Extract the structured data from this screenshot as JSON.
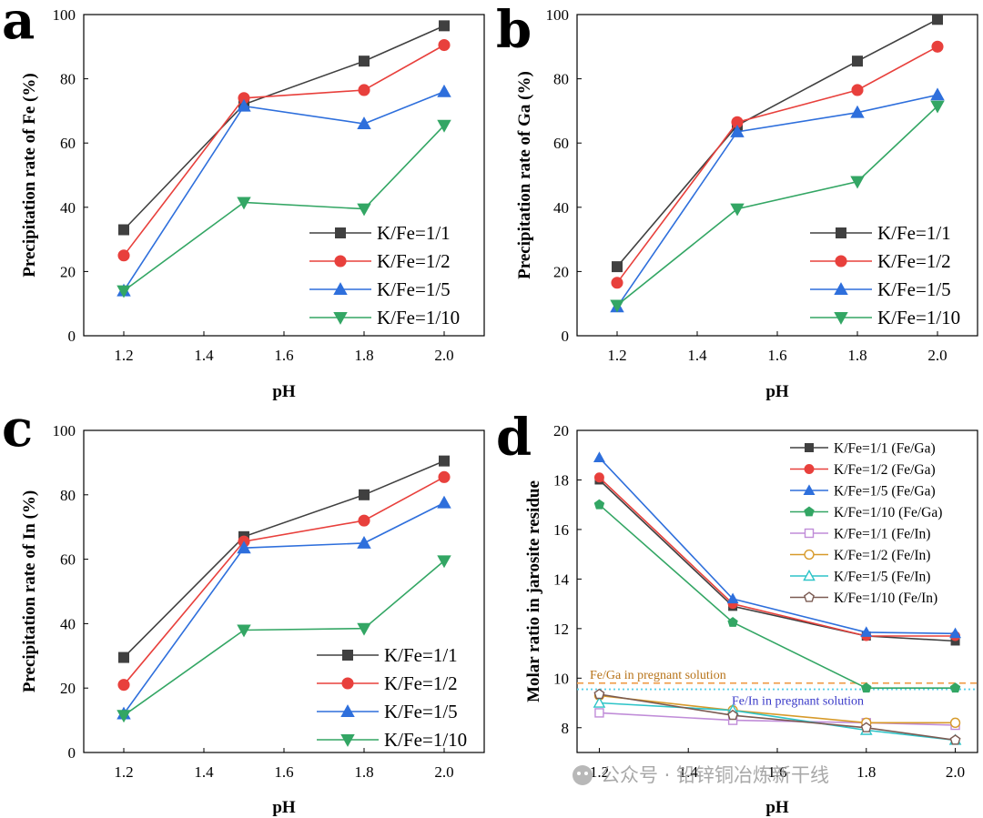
{
  "colors": {
    "s1": "#404040",
    "s2": "#e8403c",
    "s3": "#2e6fdc",
    "s4": "#33a664",
    "s5": "#c08cd8",
    "s6": "#d79a2a",
    "s7": "#2ec4c8",
    "s8": "#7a5a52",
    "feGaLine": "#f0a050",
    "feInLine": "#5ad0e8",
    "feGaText": "#b8741a",
    "feInText": "#3a3ac8"
  },
  "watermark": "公众号 · 铅锌铜冶炼新干线",
  "chart_data": [
    {
      "panel": "a",
      "type": "line",
      "xlabel": "pH",
      "ylabel": "Precipitation rate of Fe (%)",
      "x": [
        1.2,
        1.5,
        1.8,
        2.0
      ],
      "xlim": [
        1.1,
        2.1
      ],
      "ylim": [
        0,
        100
      ],
      "xticks": [
        "1.2",
        "1.4",
        "1.6",
        "1.8",
        "2.0"
      ],
      "yticks": [
        "0",
        "20",
        "40",
        "60",
        "80",
        "100"
      ],
      "legend_position": "bottom-right",
      "series": [
        {
          "name": "K/Fe=1/1",
          "marker": "square",
          "color": "#404040",
          "values": [
            33,
            72,
            85.5,
            96.5
          ]
        },
        {
          "name": "K/Fe=1/2",
          "marker": "circle",
          "color": "#e8403c",
          "values": [
            25,
            74,
            76.5,
            90.5
          ]
        },
        {
          "name": "K/Fe=1/5",
          "marker": "triangle-up",
          "color": "#2e6fdc",
          "values": [
            14,
            71.5,
            66,
            76
          ]
        },
        {
          "name": "K/Fe=1/10",
          "marker": "triangle-down",
          "color": "#33a664",
          "values": [
            14,
            41.5,
            39.5,
            65.5
          ]
        }
      ]
    },
    {
      "panel": "b",
      "type": "line",
      "xlabel": "pH",
      "ylabel": "Precipitation rate of Ga (%)",
      "x": [
        1.2,
        1.5,
        1.8,
        2.0
      ],
      "xlim": [
        1.1,
        2.1
      ],
      "ylim": [
        0,
        100
      ],
      "xticks": [
        "1.2",
        "1.4",
        "1.6",
        "1.8",
        "2.0"
      ],
      "yticks": [
        "0",
        "20",
        "40",
        "60",
        "80",
        "100"
      ],
      "legend_position": "bottom-right",
      "series": [
        {
          "name": "K/Fe=1/1",
          "marker": "square",
          "color": "#404040",
          "values": [
            21.5,
            65.5,
            85.5,
            98.5
          ]
        },
        {
          "name": "K/Fe=1/2",
          "marker": "circle",
          "color": "#e8403c",
          "values": [
            16.5,
            66.5,
            76.5,
            90
          ]
        },
        {
          "name": "K/Fe=1/5",
          "marker": "triangle-up",
          "color": "#2e6fdc",
          "values": [
            9,
            63.5,
            69.5,
            75
          ]
        },
        {
          "name": "K/Fe=1/10",
          "marker": "triangle-down",
          "color": "#33a664",
          "values": [
            9.5,
            39.5,
            48,
            71.5
          ]
        }
      ]
    },
    {
      "panel": "c",
      "type": "line",
      "xlabel": "pH",
      "ylabel": "Precipitation rate of In (%)",
      "x": [
        1.2,
        1.5,
        1.8,
        2.0
      ],
      "xlim": [
        1.1,
        2.1
      ],
      "ylim": [
        0,
        100
      ],
      "xticks": [
        "1.2",
        "1.4",
        "1.6",
        "1.8",
        "2.0"
      ],
      "yticks": [
        "0",
        "20",
        "40",
        "60",
        "80",
        "100"
      ],
      "legend_position": "bottom-right",
      "series": [
        {
          "name": "K/Fe=1/1",
          "marker": "square",
          "color": "#404040",
          "values": [
            29.5,
            67,
            80,
            90.5
          ]
        },
        {
          "name": "K/Fe=1/2",
          "marker": "circle",
          "color": "#e8403c",
          "values": [
            21,
            65.5,
            72,
            85.5
          ]
        },
        {
          "name": "K/Fe=1/5",
          "marker": "triangle-up",
          "color": "#2e6fdc",
          "values": [
            12,
            63.5,
            65,
            77.5
          ]
        },
        {
          "name": "K/Fe=1/10",
          "marker": "triangle-down",
          "color": "#33a664",
          "values": [
            11.5,
            38,
            38.5,
            59.5
          ]
        }
      ]
    },
    {
      "panel": "d",
      "type": "line",
      "xlabel": "pH",
      "ylabel": "Molar ratio in jarosite residue",
      "x": [
        1.2,
        1.5,
        1.8,
        2.0
      ],
      "xlim": [
        1.15,
        2.05
      ],
      "ylim": [
        7,
        20
      ],
      "xticks": [
        "1.2",
        "1.4",
        "1.6",
        "1.8",
        "2.0"
      ],
      "yticks": [
        "8",
        "10",
        "12",
        "14",
        "16",
        "18",
        "20"
      ],
      "legend_position": "top-right",
      "reference_lines": [
        {
          "label": "Fe/Ga in pregnant solution",
          "value": 9.8,
          "style": "dashed",
          "color": "#f0a050",
          "text_color": "#b8741a"
        },
        {
          "label": "Fe/In in pregnant solution",
          "value": 9.55,
          "style": "dotted",
          "color": "#5ad0e8",
          "text_color": "#3a3ac8"
        }
      ],
      "series": [
        {
          "name": "K/Fe=1/1 (Fe/Ga)",
          "marker": "square",
          "filled": true,
          "color": "#404040",
          "values": [
            18.0,
            12.9,
            11.7,
            11.5
          ]
        },
        {
          "name": "K/Fe=1/2 (Fe/Ga)",
          "marker": "circle",
          "filled": true,
          "color": "#e8403c",
          "values": [
            18.1,
            13.0,
            11.7,
            11.7
          ]
        },
        {
          "name": "K/Fe=1/5 (Fe/Ga)",
          "marker": "triangle-up",
          "filled": true,
          "color": "#2e6fdc",
          "values": [
            18.9,
            13.2,
            11.85,
            11.8
          ]
        },
        {
          "name": "K/Fe=1/10 (Fe/Ga)",
          "marker": "pentagon",
          "filled": true,
          "color": "#33a664",
          "values": [
            17.0,
            12.25,
            9.6,
            9.6
          ]
        },
        {
          "name": "K/Fe=1/1 (Fe/In)",
          "marker": "square",
          "filled": false,
          "color": "#c08cd8",
          "values": [
            8.6,
            8.3,
            8.2,
            8.1
          ]
        },
        {
          "name": "K/Fe=1/2 (Fe/In)",
          "marker": "circle",
          "filled": false,
          "color": "#d79a2a",
          "values": [
            9.3,
            8.7,
            8.2,
            8.2
          ]
        },
        {
          "name": "K/Fe=1/5 (Fe/In)",
          "marker": "triangle-up",
          "filled": false,
          "color": "#2ec4c8",
          "values": [
            9.0,
            8.7,
            7.9,
            7.5
          ]
        },
        {
          "name": "K/Fe=1/10 (Fe/In)",
          "marker": "pentagon",
          "filled": false,
          "color": "#7a5a52",
          "values": [
            9.35,
            8.5,
            8.0,
            7.5
          ]
        }
      ]
    }
  ]
}
